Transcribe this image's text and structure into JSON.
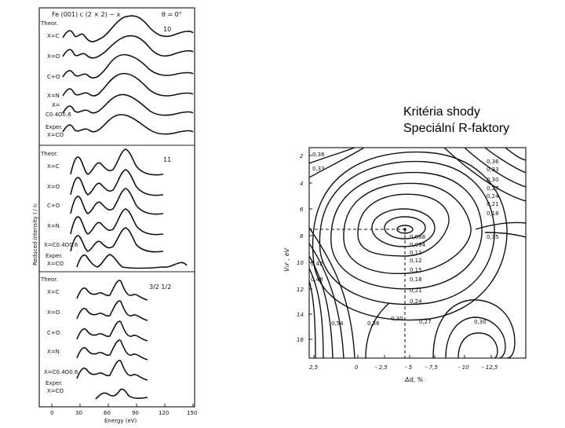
{
  "slide": {
    "title_line1": "Kritéria shody",
    "title_line2": "Speciální R-faktory"
  },
  "left_figure": {
    "header": "Fe (001) c (2 × 2) − x",
    "angle": "θ = 0°",
    "y_axis_label": "Reduced intensity I / I₀",
    "x_axis_label": "Energy (eV)",
    "x_ticks": [
      "0",
      "30",
      "60",
      "90",
      "120",
      "150"
    ],
    "panels": [
      {
        "beam": "10",
        "labels": [
          "Theor.",
          "X=C",
          "X=O",
          "C+O",
          "X=N",
          "X=",
          "C0.4O0.6",
          "Exper.",
          "X=CO"
        ]
      },
      {
        "beam": "11",
        "labels": [
          "Theor.",
          "X=C",
          "X=O",
          "C+O",
          "X=N",
          "X=C0.4O0.6",
          "Exper.",
          "X=CO"
        ]
      },
      {
        "beam": "3/2  1/2",
        "labels": [
          "Theor.",
          "X=C",
          "X=O",
          "C+O",
          "X=N",
          "X=C0.4O0.6",
          "Exper.",
          "X=CO"
        ]
      }
    ]
  },
  "right_figure": {
    "y_axis_label": "V₀r ,  eV",
    "x_axis_label": "Δd, %",
    "y_ticks": [
      "2",
      "4",
      "6",
      "8",
      "10",
      "12",
      "14",
      "16"
    ],
    "x_ticks": [
      "2,5",
      "0",
      "- 2,5",
      "- 5",
      "- 7,5",
      "- 10",
      "- 12,5"
    ],
    "contour_labels_left": [
      "0,36",
      "0,33",
      "0,42",
      "0,48",
      "0,54",
      "0,36"
    ],
    "contour_labels_right": [
      "0,36",
      "0,33",
      "0,30",
      "0,27",
      "0,24",
      "0,21",
      "0,18",
      "0,15"
    ],
    "contour_labels_center": [
      "0,088",
      "0,094",
      "0,11",
      "0,12",
      "0,15",
      "0,18",
      "0,21",
      "0,24",
      "0,30",
      "0,27",
      "0,30"
    ]
  }
}
